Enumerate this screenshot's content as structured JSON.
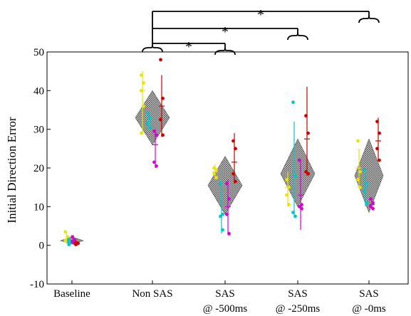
{
  "chart_data": {
    "type": "scatter",
    "title": "",
    "xlabel": "",
    "ylabel": "Initial Direction Error",
    "ylim": [
      -10,
      50
    ],
    "yticks": [
      "-10",
      "0",
      "10",
      "20",
      "30",
      "40",
      "50"
    ],
    "categories": [
      [
        "Baseline"
      ],
      [
        "Non SAS"
      ],
      [
        "SAS",
        "@ -500ms"
      ],
      [
        "SAS",
        "@ -250ms"
      ],
      [
        "SAS",
        "@ -0ms"
      ]
    ],
    "significance_marker": "*",
    "comparisons": [
      {
        "from": 1,
        "to": 2
      },
      {
        "from": 1,
        "to": 3
      },
      {
        "from": 1,
        "to": 4
      }
    ],
    "series_colors": [
      "#e6e600",
      "#00c8c8",
      "#d400d4",
      "#cc0000"
    ],
    "group_summary": [
      {
        "center": 1.2,
        "low": 0.3,
        "high": 2.2
      },
      {
        "center": 33,
        "low": 26,
        "high": 40
      },
      {
        "center": 15.5,
        "low": 8,
        "high": 23
      },
      {
        "center": 18.5,
        "low": 10,
        "high": 27.5
      },
      {
        "center": 18,
        "low": 8.5,
        "high": 27.5
      }
    ],
    "series": [
      {
        "color_index": 0,
        "groups": [
          {
            "points": [
              3.5,
              2.2,
              1.2
            ],
            "mean": 1.6,
            "low": 0.4,
            "high": 3.2
          },
          {
            "points": [
              44,
              42,
              40,
              36,
              29
            ],
            "mean": 40,
            "low": 29,
            "high": 45
          },
          {
            "points": [
              20,
              19.5,
              18.5,
              17.5
            ],
            "mean": 19,
            "low": 17,
            "high": 21
          },
          {
            "points": [
              17,
              15,
              13,
              10.5
            ],
            "mean": 15,
            "low": 10,
            "high": 19
          },
          {
            "points": [
              27,
              19,
              17,
              15
            ],
            "mean": 20,
            "low": 15,
            "high": 25
          }
        ]
      },
      {
        "color_index": 1,
        "groups": [
          {
            "points": [
              1.5,
              0.8,
              0.2
            ],
            "mean": 0.8,
            "low": 0,
            "high": 1.6
          },
          {
            "points": [
              34,
              33,
              31.5,
              30.5
            ],
            "mean": 32,
            "low": 30,
            "high": 34
          },
          {
            "points": [
              16,
              8,
              7.5,
              4
            ],
            "mean": 12,
            "low": 3,
            "high": 17
          },
          {
            "points": [
              37,
              18,
              8.5,
              7.5
            ],
            "mean": 19,
            "low": 7.5,
            "high": 32
          },
          {
            "points": [
              19.5,
              16,
              14,
              11
            ],
            "mean": 15,
            "low": 10,
            "high": 19
          }
        ]
      },
      {
        "color_index": 2,
        "groups": [
          {
            "points": [
              2.2,
              1.4,
              0.9,
              0.5
            ],
            "mean": 1.3,
            "low": 0.5,
            "high": 2.1
          },
          {
            "points": [
              29.5,
              28.5,
              21.5,
              20.5
            ],
            "mean": 26,
            "low": 20,
            "high": 30
          },
          {
            "points": [
              16,
              12,
              8,
              3
            ],
            "mean": 10,
            "low": 3,
            "high": 17
          },
          {
            "points": [
              22,
              10.5,
              10,
              9.5
            ],
            "mean": 13,
            "low": 4,
            "high": 22
          },
          {
            "points": [
              12,
              11,
              10,
              9.5
            ],
            "mean": 10.5,
            "low": 9.5,
            "high": 12
          }
        ]
      },
      {
        "color_index": 3,
        "groups": [
          {
            "points": [
              0.8,
              0.5,
              0.2
            ],
            "mean": 0.4,
            "low": 0,
            "high": 1
          },
          {
            "points": [
              48,
              38,
              32.5,
              28.5
            ],
            "mean": 36,
            "low": 28,
            "high": 44
          },
          {
            "points": [
              27,
              25,
              18.5,
              16.5
            ],
            "mean": 21.5,
            "low": 16,
            "high": 29
          },
          {
            "points": [
              33.5,
              29,
              19,
              18.5
            ],
            "mean": 27.5,
            "low": 18,
            "high": 41
          },
          {
            "points": [
              32,
              29,
              25,
              22
            ],
            "mean": 27,
            "low": 22,
            "high": 33
          }
        ]
      }
    ]
  }
}
